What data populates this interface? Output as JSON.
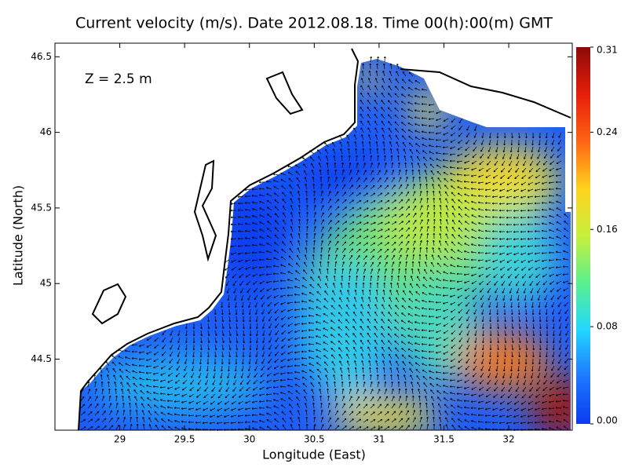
{
  "chart_data": {
    "type": "field",
    "title": "Current velocity (m/s). Date 2012.08.18. Time 00(h):00(m) GMT",
    "annotation": "Z = 2.5 m",
    "x_label": "Longitude (East)",
    "y_label": "Latitude (North)",
    "xlim": [
      28.5,
      32.49
    ],
    "ylim": [
      44.03,
      46.59
    ],
    "xticks": [
      29,
      29.5,
      30,
      30.5,
      31,
      31.5,
      32
    ],
    "yticks": [
      44.5,
      45,
      45.5,
      46,
      46.5
    ],
    "clim": [
      0,
      0.31
    ],
    "colorbar_ticks": [
      {
        "value": 0,
        "label": "0.00"
      },
      0.08,
      0.16,
      0.24,
      0.31
    ],
    "colormap": [
      "#0a3cf0",
      "#1e78ff",
      "#22d7ff",
      "#5af08c",
      "#c8f03c",
      "#ffd21e",
      "#ff6414",
      "#e61e0a",
      "#8c0a0a"
    ]
  }
}
